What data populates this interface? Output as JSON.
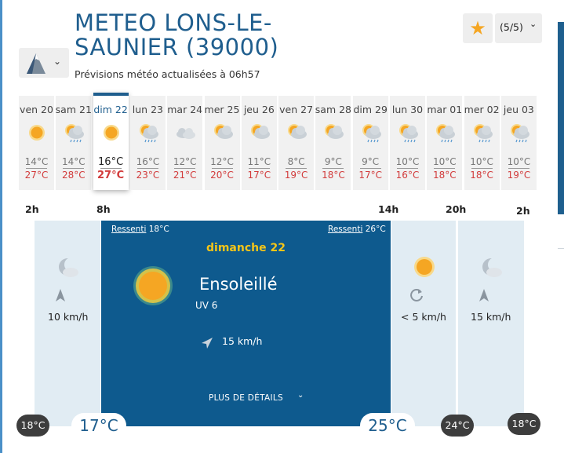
{
  "header": {
    "title_line1": "METEO LONS-LE-",
    "title_line2": "SAUNIER (39000)",
    "subtitle": "Prévisions météo actualisées à 06h57",
    "pagination": "(5/5)"
  },
  "icons": {
    "mountain": "mountain-icon",
    "favorite": "star-icon",
    "chevron": "chevron-down-icon"
  },
  "colors": {
    "brand": "#1f5e8e",
    "panel": "#0e5a8e",
    "slot_bg": "#e1ecf3",
    "max_temp": "#d23b3b",
    "sun": "#f5a623",
    "date_yellow": "#f5c518"
  },
  "days": [
    {
      "label": "ven 20",
      "icon": "sun-icon",
      "min": "14°C",
      "max": "27°C"
    },
    {
      "label": "sam 21",
      "icon": "sun-cloud-rain-icon",
      "min": "14°C",
      "max": "28°C"
    },
    {
      "label": "dim 22",
      "icon": "sun-icon",
      "min": "16°C",
      "max": "27°C",
      "selected": true
    },
    {
      "label": "lun 23",
      "icon": "sun-cloud-rain-icon",
      "min": "16°C",
      "max": "23°C"
    },
    {
      "label": "mar 24",
      "icon": "cloud-icon",
      "min": "12°C",
      "max": "21°C"
    },
    {
      "label": "mer 25",
      "icon": "sun-cloud-icon",
      "min": "12°C",
      "max": "20°C"
    },
    {
      "label": "jeu 26",
      "icon": "sun-cloud-icon",
      "min": "11°C",
      "max": "17°C"
    },
    {
      "label": "ven 27",
      "icon": "sun-cloud-icon",
      "min": "8°C",
      "max": "19°C"
    },
    {
      "label": "sam 28",
      "icon": "sun-cloud-icon",
      "min": "9°C",
      "max": "18°C"
    },
    {
      "label": "dim 29",
      "icon": "sun-cloud-rain-icon",
      "min": "9°C",
      "max": "17°C"
    },
    {
      "label": "lun 30",
      "icon": "sun-cloud-rain-icon",
      "min": "10°C",
      "max": "16°C"
    },
    {
      "label": "mar 01",
      "icon": "sun-cloud-rain-icon",
      "min": "10°C",
      "max": "18°C"
    },
    {
      "label": "mer 02",
      "icon": "sun-cloud-rain-icon",
      "min": "10°C",
      "max": "18°C"
    },
    {
      "label": "jeu 03",
      "icon": "sun-cloud-rain-icon",
      "min": "10°C",
      "max": "19°C"
    }
  ],
  "timeline": {
    "hours": [
      "2h",
      "8h",
      "14h",
      "20h",
      "2h"
    ],
    "slots": [
      {
        "icon": "moon-cloud-icon",
        "wind_icon": "wind-arrow-icon",
        "wind": "10 km/h"
      },
      {
        "icon": "sun-icon",
        "wind_icon": "wind-variable-icon",
        "wind": "< 5 km/h"
      },
      {
        "icon": "moon-cloud-icon",
        "wind_icon": "wind-arrow-icon",
        "wind": "15 km/h"
      }
    ],
    "temps": [
      "18°C",
      "17°C",
      "25°C",
      "24°C",
      "18°C"
    ]
  },
  "detail": {
    "felt_label": "Ressenti",
    "felt_left": "18°C",
    "felt_right": "26°C",
    "date": "dimanche 22",
    "condition": "Ensoleillé",
    "uv": "UV 6",
    "wind": "15 km/h",
    "more": "PLUS DE DÉTAILS"
  }
}
